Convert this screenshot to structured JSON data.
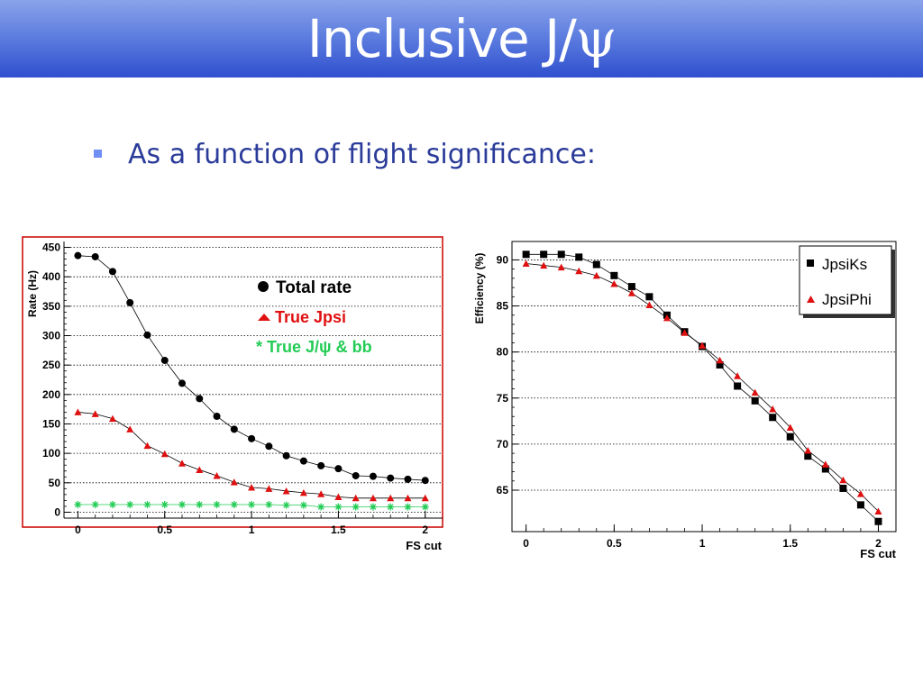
{
  "slide": {
    "title_prefix": "Inclusive J/",
    "title_symbol": "ψ",
    "bullet": "As a function of flight significance:"
  },
  "colors": {
    "title_gradient_top": "#8aa3ea",
    "title_gradient_bottom": "#2f4fcf",
    "bullet_text": "#2a3b99",
    "bullet_marker": "#6f8ff5",
    "series_black": "#000000",
    "series_red": "#e01010",
    "series_green": "#22cc55",
    "frame_red": "#cc0000"
  },
  "chart_data": [
    {
      "type": "line",
      "xlabel": "FS cut",
      "ylabel": "Rate (Hz)",
      "xlim": [
        -0.08,
        2.1
      ],
      "ylim": [
        -10,
        460
      ],
      "xticks": [
        "0",
        "0.5",
        "1",
        "1.5",
        "2"
      ],
      "yticks": [
        "0",
        "50",
        "100",
        "150",
        "200",
        "250",
        "300",
        "350",
        "400",
        "450"
      ],
      "grid": "horizontal dotted",
      "legend_placement": "top-center",
      "x": [
        0,
        0.1,
        0.2,
        0.3,
        0.4,
        0.5,
        0.6,
        0.7,
        0.8,
        0.9,
        1.0,
        1.1,
        1.2,
        1.3,
        1.4,
        1.5,
        1.6,
        1.7,
        1.8,
        1.9,
        2.0
      ],
      "series": [
        {
          "name": "Total rate",
          "marker": "circle",
          "color": "#000000",
          "values": [
            436,
            434,
            409,
            356,
            301,
            258,
            219,
            193,
            163,
            141,
            125,
            112,
            96,
            87,
            79,
            74,
            62,
            61,
            58,
            56,
            54
          ]
        },
        {
          "name": "True Jpsi",
          "marker": "triangle",
          "color": "#e01010",
          "values": [
            170,
            167,
            159,
            141,
            113,
            99,
            83,
            72,
            62,
            51,
            42,
            40,
            36,
            33,
            31,
            26,
            24,
            24,
            24,
            24,
            24
          ]
        },
        {
          "name": "* True J/ψ & bb",
          "marker": "star",
          "color": "#22cc55",
          "values": [
            13,
            13,
            13,
            13,
            13,
            13,
            13,
            13,
            13,
            13,
            13,
            13,
            12,
            12,
            9,
            9,
            9,
            9,
            9,
            9,
            9
          ]
        }
      ]
    },
    {
      "type": "line",
      "xlabel": "FS cut",
      "ylabel": "Efficiency (%)",
      "xlim": [
        -0.08,
        2.1
      ],
      "ylim": [
        60.5,
        92
      ],
      "xticks": [
        "0",
        "0.5",
        "1",
        "1.5",
        "2"
      ],
      "yticks": [
        "65",
        "70",
        "75",
        "80",
        "85",
        "90"
      ],
      "grid": "horizontal dotted",
      "legend_placement": "top-right",
      "x": [
        0,
        0.1,
        0.2,
        0.3,
        0.4,
        0.5,
        0.6,
        0.7,
        0.8,
        0.9,
        1.0,
        1.1,
        1.2,
        1.3,
        1.4,
        1.5,
        1.6,
        1.7,
        1.8,
        1.9,
        2.0
      ],
      "series": [
        {
          "name": "JpsiKs",
          "marker": "square",
          "color": "#000000",
          "values": [
            90.6,
            90.6,
            90.6,
            90.3,
            89.5,
            88.3,
            87.1,
            86.0,
            84.0,
            82.2,
            80.6,
            78.6,
            76.3,
            74.7,
            72.9,
            70.8,
            68.7,
            67.3,
            65.2,
            63.4,
            61.6
          ]
        },
        {
          "name": "JpsiPhi",
          "marker": "triangle",
          "color": "#e01010",
          "values": [
            89.6,
            89.4,
            89.2,
            88.8,
            88.3,
            87.4,
            86.4,
            85.1,
            83.7,
            82.1,
            80.7,
            79.1,
            77.4,
            75.6,
            73.8,
            71.8,
            69.3,
            67.8,
            66.1,
            64.6,
            62.7
          ]
        }
      ]
    }
  ]
}
